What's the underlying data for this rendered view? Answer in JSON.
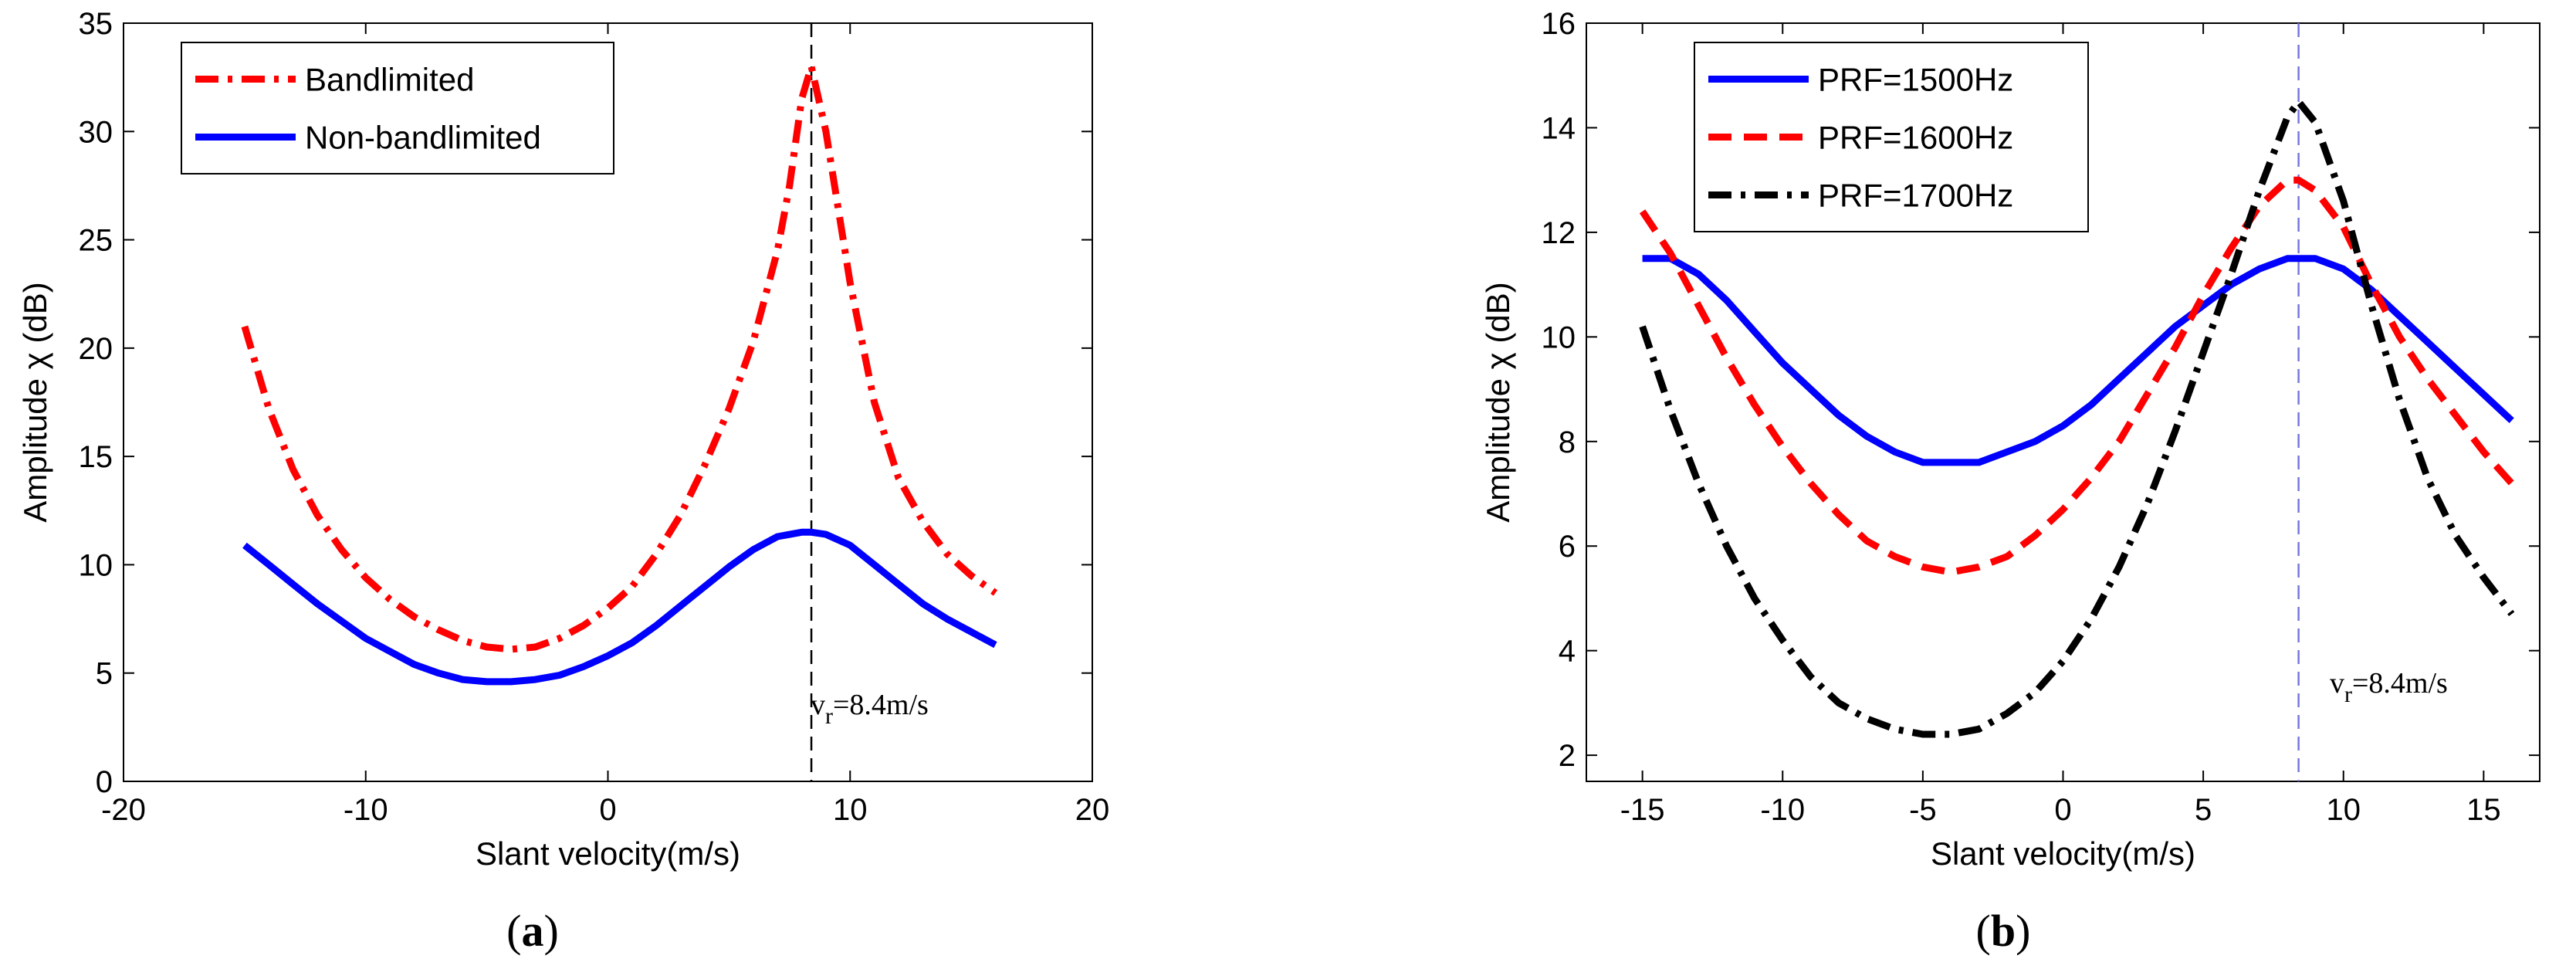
{
  "chart_data": [
    {
      "type": "line",
      "panel": "a",
      "caption_open": "(",
      "caption_letter": "a",
      "caption_close": ")",
      "xlabel": "Slant velocity(m/s)",
      "ylabel": "Amplitude χ (dB)",
      "xlim": [
        -20,
        20
      ],
      "ylim": [
        0,
        35
      ],
      "xticks": [
        -20,
        -10,
        0,
        10,
        20
      ],
      "yticks": [
        0,
        5,
        10,
        15,
        20,
        25,
        30,
        35
      ],
      "grid": false,
      "legend_position": "top-left",
      "vline": {
        "x": 8.4,
        "color": "#000000",
        "label_main": "v",
        "label_sub": "r",
        "label_rest": "=8.4m/s"
      },
      "series": [
        {
          "name": "Bandlimited",
          "color": "#ff0000",
          "style": "dashdot",
          "x": [
            -15,
            -14,
            -13,
            -12,
            -11,
            -10,
            -9,
            -8,
            -7,
            -6,
            -5,
            -4,
            -3,
            -2,
            -1,
            0,
            1,
            2,
            3,
            4,
            5,
            6,
            7,
            7.5,
            8,
            8.4,
            9,
            10,
            11,
            12,
            13,
            14,
            15,
            16
          ],
          "y": [
            21.0,
            17.2,
            14.4,
            12.3,
            10.7,
            9.4,
            8.4,
            7.6,
            7.0,
            6.5,
            6.2,
            6.1,
            6.2,
            6.6,
            7.2,
            8.0,
            9.0,
            10.5,
            12.3,
            14.6,
            17.2,
            20.3,
            24.5,
            27.5,
            31.5,
            33.0,
            30.0,
            23.0,
            17.5,
            14.0,
            12.0,
            10.5,
            9.5,
            8.7
          ]
        },
        {
          "name": "Non-bandlimited",
          "color": "#0000ff",
          "style": "solid",
          "x": [
            -15,
            -14,
            -13,
            -12,
            -11,
            -10,
            -9,
            -8,
            -7,
            -6,
            -5,
            -4,
            -3,
            -2,
            -1,
            0,
            1,
            2,
            3,
            4,
            5,
            6,
            7,
            8,
            8.4,
            9,
            10,
            11,
            12,
            13,
            14,
            15,
            16
          ],
          "y": [
            10.9,
            10.0,
            9.1,
            8.2,
            7.4,
            6.6,
            6.0,
            5.4,
            5.0,
            4.7,
            4.6,
            4.6,
            4.7,
            4.9,
            5.3,
            5.8,
            6.4,
            7.2,
            8.1,
            9.0,
            9.9,
            10.7,
            11.3,
            11.5,
            11.5,
            11.4,
            10.9,
            10.0,
            9.1,
            8.2,
            7.5,
            6.9,
            6.3
          ]
        }
      ]
    },
    {
      "type": "line",
      "panel": "b",
      "caption_open": "(",
      "caption_letter": "b",
      "caption_close": ")",
      "xlabel": "Slant velocity(m/s)",
      "ylabel": "Amplitude χ (dB)",
      "xlim": [
        -17,
        17
      ],
      "ylim": [
        1.5,
        16
      ],
      "xticks": [
        -15,
        -10,
        -5,
        0,
        5,
        10,
        15
      ],
      "yticks": [
        2,
        4,
        6,
        8,
        10,
        12,
        14,
        16
      ],
      "grid": false,
      "legend_position": "top-left",
      "vline": {
        "x": 8.4,
        "color": "#7777dd",
        "label_main": "v",
        "label_sub": "r",
        "label_rest": "=8.4m/s"
      },
      "series": [
        {
          "name": "PRF=1500Hz",
          "color": "#0000ff",
          "style": "solid",
          "x": [
            -15,
            -14,
            -13,
            -12,
            -11,
            -10,
            -9,
            -8,
            -7,
            -6,
            -5,
            -4,
            -3,
            -2,
            -1,
            0,
            1,
            2,
            3,
            4,
            5,
            6,
            7,
            8,
            8.4,
            9,
            10,
            11,
            12,
            13,
            14,
            15,
            16
          ],
          "y": [
            11.5,
            11.5,
            11.2,
            10.7,
            10.1,
            9.5,
            9.0,
            8.5,
            8.1,
            7.8,
            7.6,
            7.6,
            7.6,
            7.8,
            8.0,
            8.3,
            8.7,
            9.2,
            9.7,
            10.2,
            10.6,
            11.0,
            11.3,
            11.5,
            11.5,
            11.5,
            11.3,
            10.9,
            10.4,
            9.9,
            9.4,
            8.9,
            8.4
          ]
        },
        {
          "name": "PRF=1600Hz",
          "color": "#ff0000",
          "style": "dashed",
          "x": [
            -15,
            -14,
            -13,
            -12,
            -11,
            -10,
            -9,
            -8,
            -7,
            -6,
            -5,
            -4,
            -3,
            -2,
            -1,
            0,
            1,
            2,
            3,
            4,
            5,
            6,
            7,
            8,
            8.4,
            9,
            10,
            11,
            12,
            13,
            14,
            15,
            16
          ],
          "y": [
            12.4,
            11.6,
            10.6,
            9.6,
            8.7,
            7.9,
            7.2,
            6.6,
            6.1,
            5.8,
            5.6,
            5.5,
            5.6,
            5.8,
            6.2,
            6.7,
            7.3,
            8.0,
            8.9,
            9.8,
            10.8,
            11.7,
            12.5,
            13.0,
            13.0,
            12.8,
            12.1,
            11.0,
            10.0,
            9.2,
            8.5,
            7.8,
            7.2
          ]
        },
        {
          "name": "PRF=1700Hz",
          "color": "#000000",
          "style": "dashdot",
          "x": [
            -15,
            -14,
            -13,
            -12,
            -11,
            -10,
            -9,
            -8,
            -7,
            -6,
            -5,
            -4,
            -3,
            -2,
            -1,
            0,
            1,
            2,
            3,
            4,
            5,
            6,
            7,
            8,
            8.4,
            9,
            10,
            11,
            12,
            13,
            14,
            15,
            16
          ],
          "y": [
            10.2,
            8.6,
            7.2,
            6.0,
            5.0,
            4.2,
            3.5,
            3.0,
            2.7,
            2.5,
            2.4,
            2.4,
            2.5,
            2.8,
            3.2,
            3.8,
            4.6,
            5.6,
            6.8,
            8.2,
            9.7,
            11.2,
            12.8,
            14.2,
            14.5,
            14.1,
            12.6,
            10.6,
            8.8,
            7.3,
            6.2,
            5.4,
            4.7
          ]
        }
      ]
    }
  ]
}
